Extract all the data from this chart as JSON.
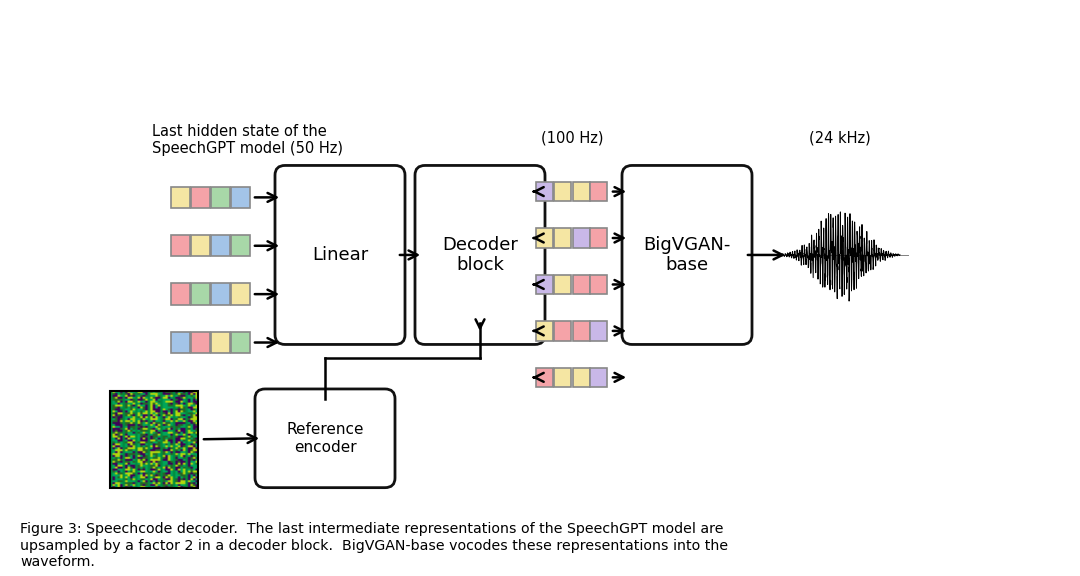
{
  "caption": "Figure 3: Speechcode decoder.  The last intermediate representations of the SpeechGPT model are\nupsampled by a factor 2 in a decoder block.  BigVGAN-base vocodes these representations into the\nwaveform.",
  "label_top_left": "Last hidden state of the\nSpeechGPT model (50 Hz)",
  "label_mid": "(100 Hz)",
  "label_right": "(24 kHz)",
  "box_linear": "Linear",
  "box_decoder": "Decoder\nblock",
  "box_bigvgan": "BigVGAN-\nbase",
  "box_ref": "Reference\nencoder",
  "bg_color": "#ffffff",
  "box_edge_color": "#111111",
  "box_face_color": "#ffffff",
  "input_colors_row0": [
    "#f5e6a3",
    "#f5a3a8",
    "#a8d8a8",
    "#a3c4e8"
  ],
  "input_colors_row1": [
    "#f5a3a8",
    "#f5e6a3",
    "#a3c4e8",
    "#a8d8a8"
  ],
  "input_colors_row2": [
    "#f5a3a8",
    "#a8d8a8",
    "#a3c4e8",
    "#f5e6a3"
  ],
  "input_colors_row3": [
    "#a3c4e8",
    "#f5a3a8",
    "#f5e6a3",
    "#a8d8a8"
  ],
  "output_colors_row0": [
    "#c9b8e8",
    "#f5e6a3",
    "#f5e6a3",
    "#f5a3a8"
  ],
  "output_colors_row1": [
    "#f5e6a3",
    "#f5e6a3",
    "#c9b8e8",
    "#f5a3a8"
  ],
  "output_colors_row2": [
    "#c9b8e8",
    "#f5e6a3",
    "#f5a3a8",
    "#f5a3a8"
  ],
  "output_colors_row3": [
    "#f5e6a3",
    "#f5a3a8",
    "#f5a3a8",
    "#c9b8e8"
  ],
  "output_colors_row4": [
    "#f5a3a8",
    "#f5e6a3",
    "#f5e6a3",
    "#c9b8e8"
  ]
}
